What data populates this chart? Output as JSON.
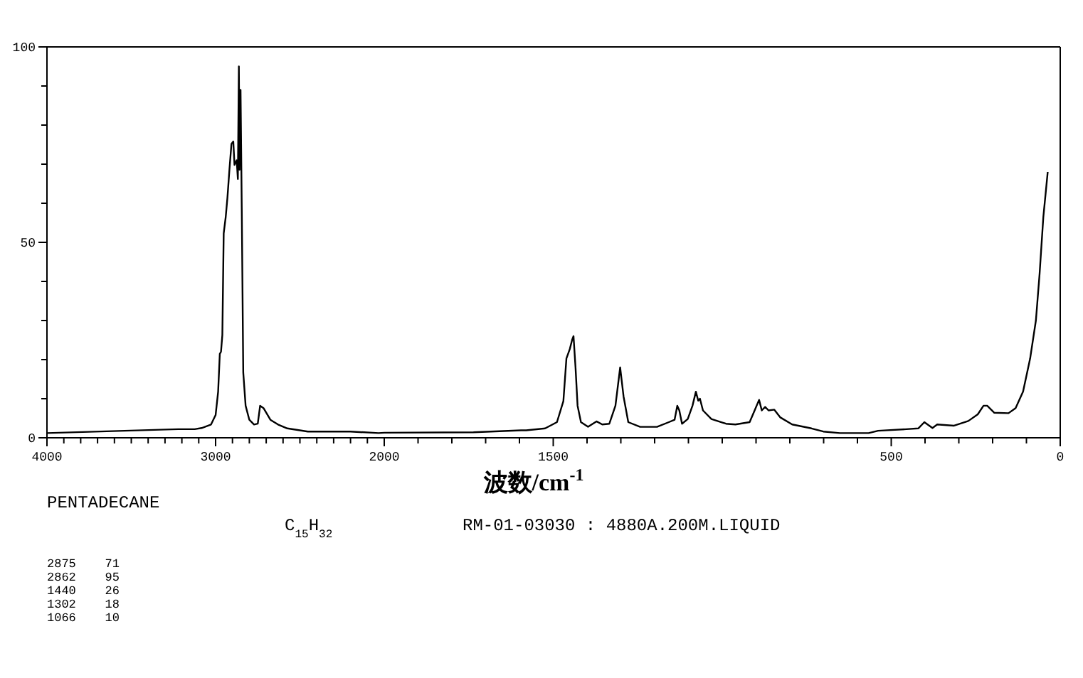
{
  "chart_data": [
    {
      "type": "line",
      "title": "PENTADECANE",
      "subtitle": "C$_{15}$H$_{32}$",
      "annotations": [
        "RM-01-03030 : 4880A.200M.LIQUID",
        "2875    71",
        "2862    95",
        "1440    26",
        "1302    18",
        "1066    10"
      ],
      "xlim": [
        4000,
        2000
      ],
      "xticks": [
        4000,
        {
          "value": 3900,
          "label": null
        },
        {
          "value": 3800,
          "label": null
        },
        {
          "value": 3700,
          "label": null
        },
        {
          "value": 3600,
          "label": null
        },
        {
          "value": 3500,
          "label": null
        },
        {
          "value": 3400,
          "label": null
        },
        {
          "value": 3300,
          "label": null
        },
        {
          "value": 3200,
          "label": null
        },
        {
          "value": 3100,
          "label": null
        },
        3000,
        {
          "value": 2900,
          "label": null
        },
        {
          "value": 2800,
          "label": null
        },
        {
          "value": 2700,
          "label": null
        },
        {
          "value": 2600,
          "label": null
        },
        {
          "value": 2500,
          "label": null
        },
        {
          "value": 2400,
          "label": null
        },
        {
          "value": 2300,
          "label": null
        },
        {
          "value": 2200,
          "label": null
        },
        {
          "value": 2100,
          "label": null
        },
        2000
      ],
      "ylim": [
        0,
        100
      ],
      "yticks": [
        0,
        {
          "value": 10,
          "label": null
        },
        {
          "value": 20,
          "label": null
        },
        {
          "value": 30,
          "label": null
        },
        {
          "value": 40,
          "label": null
        },
        50,
        {
          "value": 60,
          "label": null
        },
        {
          "value": 70,
          "label": null
        },
        {
          "value": 80,
          "label": null
        },
        {
          "value": 90,
          "label": null
        },
        100
      ],
      "marker": "none",
      "line_style": "solid",
      "series": [
        {
          "color": "#000000",
          "x": [
            4000,
            3222,
            3124,
            3083,
            3027,
            3000,
            2985,
            2975,
            2968,
            2960,
            2952,
            2940,
            2930,
            2918,
            2906,
            2895,
            2888,
            2875,
            2868,
            2862,
            2858,
            2852,
            2845,
            2836,
            2822,
            2800,
            2772,
            2750,
            2736,
            2716,
            2675,
            2630,
            2575,
            2453,
            2201,
            2034,
            2000
          ],
          "values": [
            1.2,
            2.2,
            2.2,
            2.5,
            3.4,
            5.8,
            11.8,
            21.5,
            22,
            26.3,
            52.3,
            56.5,
            61.4,
            68.6,
            75.2,
            75.8,
            69.8,
            71,
            66.2,
            95,
            68.6,
            89,
            58.9,
            16.7,
            8.2,
            4.6,
            3.4,
            3.6,
            8.2,
            7.6,
            4.6,
            3.4,
            2.4,
            1.6,
            1.6,
            1.2,
            1.3
          ]
        }
      ]
    },
    {
      "type": "line",
      "xlabel": "波数/cm$^{-1}$",
      "xlim": [
        2000,
        0
      ],
      "xticks": [
        {
          "value": 2000,
          "label": null
        },
        {
          "value": 1900,
          "label": null
        },
        {
          "value": 1800,
          "label": null
        },
        {
          "value": 1700,
          "label": null
        },
        {
          "value": 1600,
          "label": null
        },
        1500,
        {
          "value": 1400,
          "label": null
        },
        {
          "value": 1300,
          "label": null
        },
        {
          "value": 1200,
          "label": null
        },
        {
          "value": 1100,
          "label": null
        },
        {
          "value": 1000,
          "label": null
        },
        {
          "value": 900,
          "label": null
        },
        {
          "value": 800,
          "label": null
        },
        {
          "value": 700,
          "label": null
        },
        {
          "value": 600,
          "label": null
        },
        500,
        {
          "value": 400,
          "label": null
        },
        {
          "value": 300,
          "label": null
        },
        {
          "value": 200,
          "label": null
        },
        {
          "value": 100,
          "label": null
        },
        0
      ],
      "ylim": [
        0,
        100
      ],
      "tick_labels": "x",
      "marker": "none",
      "line_style": "solid",
      "series": [
        {
          "color": "#000000",
          "x": [
            2000,
            1736,
            1595,
            1580,
            1524,
            1489,
            1470,
            1461,
            1451,
            1444,
            1440,
            1434,
            1428,
            1418,
            1397,
            1372,
            1355,
            1334,
            1316,
            1302,
            1292,
            1278,
            1243,
            1193,
            1158,
            1141,
            1133,
            1127,
            1119,
            1102,
            1088,
            1078,
            1071,
            1066,
            1057,
            1032,
            989,
            961,
            919,
            905,
            891,
            883,
            873,
            863,
            846,
            828,
            793,
            736,
            701,
            652,
            567,
            539,
            455,
            420,
            402,
            378,
            364,
            314,
            272,
            244,
            227,
            216,
            195,
            153,
            132,
            110,
            89,
            72,
            61,
            50,
            37
          ],
          "values": [
            1.3,
            1.4,
            1.9,
            1.9,
            2.4,
            4.0,
            9.4,
            20.3,
            22.7,
            25.1,
            26,
            17.9,
            8.2,
            4.0,
            2.8,
            4.2,
            3.4,
            3.6,
            8.2,
            18,
            10.6,
            4.0,
            2.8,
            2.8,
            4.0,
            4.6,
            8.2,
            7.0,
            3.6,
            4.8,
            8.2,
            11.8,
            9.5,
            10,
            7.0,
            4.8,
            3.6,
            3.4,
            4.0,
            6.8,
            9.7,
            7.0,
            7.9,
            7.0,
            7.2,
            5.2,
            3.4,
            2.4,
            1.6,
            1.2,
            1.2,
            1.8,
            2.2,
            2.4,
            4.0,
            2.5,
            3.4,
            3.1,
            4.3,
            6.0,
            8.2,
            8.2,
            6.4,
            6.3,
            7.6,
            11.8,
            20.3,
            30,
            42,
            56.5,
            68
          ]
        }
      ]
    }
  ]
}
